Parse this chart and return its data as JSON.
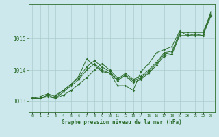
{
  "title": "Graphe pression niveau de la mer (hPa)",
  "xlabel": "Graphe pression niveau de la mer (hPa)",
  "background_color": "#cce8ed",
  "grid_color": "#aacccc",
  "line_color": "#2d6e2d",
  "hours": [
    0,
    1,
    2,
    3,
    4,
    5,
    6,
    7,
    8,
    9,
    10,
    11,
    12,
    13,
    14,
    15,
    16,
    17,
    18,
    19,
    20,
    21,
    22,
    23
  ],
  "series": [
    [
      1013.1,
      1013.1,
      1013.15,
      1013.1,
      1013.2,
      1013.35,
      1013.55,
      1013.75,
      1014.0,
      1014.2,
      1014.0,
      1013.75,
      1013.8,
      1013.6,
      1013.7,
      1013.9,
      1014.15,
      1014.45,
      1014.5,
      1015.1,
      1015.1,
      1015.1,
      1015.1,
      1015.7
    ],
    [
      1013.1,
      1013.1,
      1013.2,
      1013.1,
      1013.3,
      1013.5,
      1013.7,
      1014.0,
      1014.2,
      1014.0,
      1013.9,
      1013.65,
      1013.85,
      1013.65,
      1013.75,
      1013.95,
      1014.2,
      1014.5,
      1014.55,
      1015.15,
      1015.15,
      1015.15,
      1015.15,
      1015.75
    ],
    [
      1013.1,
      1013.15,
      1013.25,
      1013.15,
      1013.35,
      1013.55,
      1013.75,
      1014.1,
      1014.3,
      1014.1,
      1013.95,
      1013.7,
      1013.9,
      1013.7,
      1013.8,
      1014.0,
      1014.25,
      1014.55,
      1014.6,
      1015.2,
      1015.2,
      1015.2,
      1015.2,
      1015.8
    ]
  ],
  "series_zigzag": [
    1013.1,
    1013.1,
    1013.2,
    1013.2,
    1013.35,
    1013.55,
    1013.8,
    1014.35,
    1014.15,
    1013.95,
    1013.9,
    1013.5,
    1013.5,
    1013.35,
    1013.95,
    1014.2,
    1014.55,
    1014.65,
    1014.75,
    1015.25,
    1015.1,
    1015.15,
    1015.1,
    1015.85
  ],
  "yticks": [
    1013,
    1014,
    1015
  ],
  "ylim": [
    1012.65,
    1016.1
  ],
  "xlim": [
    -0.5,
    23.5
  ]
}
